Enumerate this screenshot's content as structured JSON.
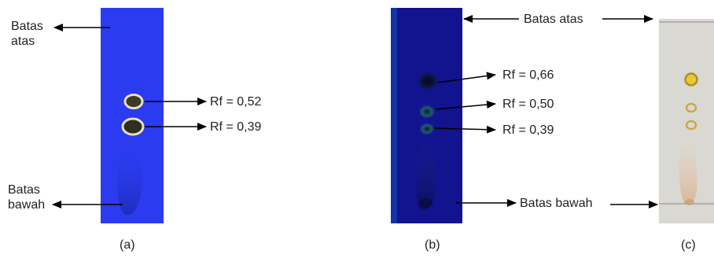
{
  "panel_a": {
    "upper_label_line1": "Batas",
    "upper_label_line2": "atas",
    "lower_label_line1": "Batas",
    "lower_label_line2": "bawah",
    "spots": [
      "Rf = 0,52",
      "Rf = 0,39"
    ],
    "caption": "(a)"
  },
  "panel_b": {
    "upper_label": "Batas atas",
    "lower_label": "Batas bawah",
    "spots": [
      "Rf = 0,66",
      "Rf = 0,50",
      "Rf = 0,39"
    ],
    "caption": "(b)"
  },
  "panel_c": {
    "caption": "(c)"
  },
  "colors": {
    "plate_a": "#2b3bef",
    "plate_b": "#12138f",
    "plate_c": "#d9d8d2",
    "arrow": "#000000"
  }
}
